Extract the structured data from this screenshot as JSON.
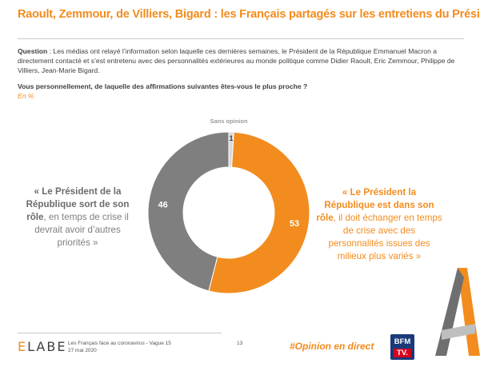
{
  "header": {
    "title": "Raoult, Zemmour, de Villiers, Bigard : les Français partagés sur les entretiens du Président",
    "question_label": "Question",
    "question_text": " : Les médias ont relayé l’information selon laquelle ces dernières semaines, le Président de la République Emmanuel Macron a directement contacté et s’est entretenu avec des personnalités extérieures au monde politique comme Didier Raoult, Eric Zemmour, Philippe de Villiers, Jean-Marie Bigard.",
    "subquestion": "Vous personnellement, de laquelle des affirmations suivantes êtes-vous le plus proche ?",
    "unit": "En %"
  },
  "chart_data": {
    "type": "pie",
    "donut": true,
    "slices": [
      {
        "label": "Sans opinion",
        "value": 1,
        "color": "#d9d9d9"
      },
      {
        "label": "« Le Président la République est dans son rôle, il doit échanger en temps de crise avec des personnalités issues des milieux plus variés »",
        "value": 53,
        "color": "#f28c1e"
      },
      {
        "label": "« Le Président de la République sort de son rôle, en temps de crise il devrait avoir d’autres priorités »",
        "value": 46,
        "color": "#7f7f7f"
      }
    ],
    "value_label_colors": [
      "#404040",
      "#ffffff",
      "#ffffff"
    ]
  },
  "quotes": {
    "left_hl": "« Le Président de la République sort de son rôle",
    "left_rest": ", en temps de crise il devrait avoir d’autres priorités »",
    "right_hl": "« Le Président la République est dans son rôle",
    "right_rest": ", il doit échanger en temps de crise avec des personnalités issues des milieux plus variés »"
  },
  "footer": {
    "logo_first": "E",
    "logo_rest": "LABE",
    "source": "Les Français face au coronavirus - Vague 15",
    "date": "27 mai 2020",
    "page": "13",
    "hashtag": "#Opinion en direct",
    "tv_line1": "BFM",
    "tv_line2": "TV."
  },
  "colors": {
    "accent": "#f28c1e",
    "grey": "#7f7f7f"
  }
}
